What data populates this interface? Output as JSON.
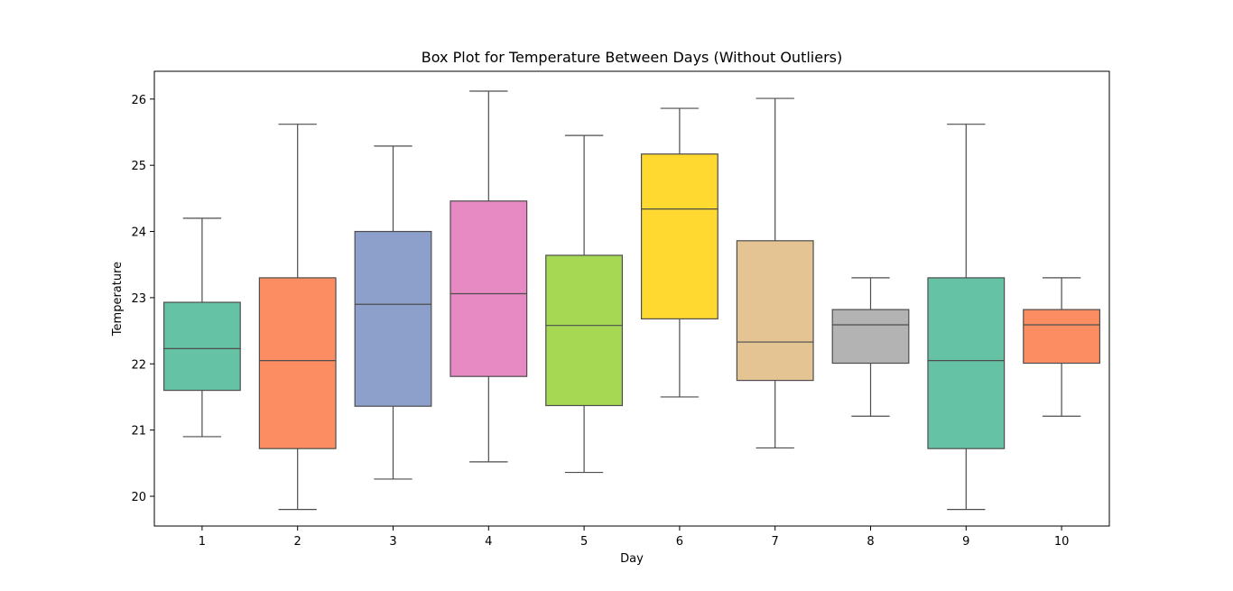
{
  "chart_data": {
    "type": "box",
    "title": "Box Plot for Temperature Between Days (Without Outliers)",
    "xlabel": "Day",
    "ylabel": "Temperature",
    "ylim": [
      19.55,
      26.42
    ],
    "yticks": [
      20,
      21,
      22,
      23,
      24,
      25,
      26
    ],
    "grid": false,
    "categories": [
      "1",
      "2",
      "3",
      "4",
      "5",
      "6",
      "7",
      "8",
      "9",
      "10"
    ],
    "boxes": [
      {
        "day": "1",
        "whisker_low": 20.9,
        "q1": 21.6,
        "median": 22.23,
        "q3": 22.93,
        "whisker_high": 24.2,
        "color": "#66c2a5"
      },
      {
        "day": "2",
        "whisker_low": 19.8,
        "q1": 20.72,
        "median": 22.05,
        "q3": 23.3,
        "whisker_high": 25.62,
        "color": "#fc8d62"
      },
      {
        "day": "3",
        "whisker_low": 20.26,
        "q1": 21.36,
        "median": 22.9,
        "q3": 24.0,
        "whisker_high": 25.29,
        "color": "#8da0cb"
      },
      {
        "day": "4",
        "whisker_low": 20.52,
        "q1": 21.81,
        "median": 23.06,
        "q3": 24.46,
        "whisker_high": 26.12,
        "color": "#e78ac3"
      },
      {
        "day": "5",
        "whisker_low": 20.36,
        "q1": 21.37,
        "median": 22.58,
        "q3": 23.64,
        "whisker_high": 25.45,
        "color": "#a6d854"
      },
      {
        "day": "6",
        "whisker_low": 21.5,
        "q1": 22.68,
        "median": 24.34,
        "q3": 25.17,
        "whisker_high": 25.86,
        "color": "#ffd92f"
      },
      {
        "day": "7",
        "whisker_low": 20.73,
        "q1": 21.75,
        "median": 22.33,
        "q3": 23.86,
        "whisker_high": 26.01,
        "color": "#e5c494"
      },
      {
        "day": "8",
        "whisker_low": 21.21,
        "q1": 22.01,
        "median": 22.59,
        "q3": 22.82,
        "whisker_high": 23.3,
        "color": "#b3b3b3"
      },
      {
        "day": "9",
        "whisker_low": 19.8,
        "q1": 20.72,
        "median": 22.05,
        "q3": 23.3,
        "whisker_high": 25.62,
        "color": "#66c2a5"
      },
      {
        "day": "10",
        "whisker_low": 21.21,
        "q1": 22.01,
        "median": 22.59,
        "q3": 22.82,
        "whisker_high": 23.3,
        "color": "#fc8d62"
      }
    ]
  }
}
